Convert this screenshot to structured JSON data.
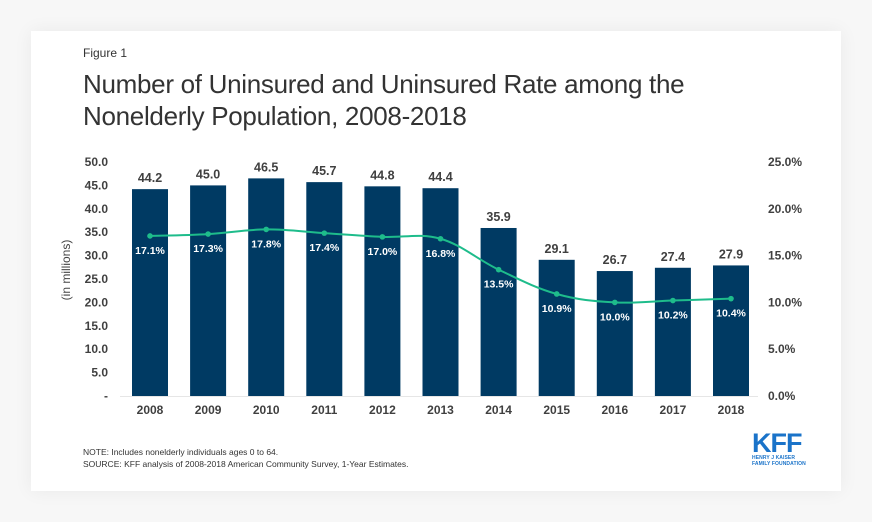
{
  "figure_label": "Figure 1",
  "title_lines": [
    "Number of Uninsured and Uninsured Rate among the",
    "Nonelderly Population, 2008-2018"
  ],
  "note": "NOTE: Includes nonelderly individuals ages 0 to 64.",
  "source": "SOURCE: KFF analysis of 2008-2018 American Community Survey, 1-Year Estimates.",
  "logo": {
    "name": "KFF",
    "sub_line1": "HENRY J KAISER",
    "sub_line2": "FAMILY FOUNDATION"
  },
  "colors": {
    "bar": "#003a63",
    "line": "#1ebc8b",
    "text": "#333333",
    "logo": "#1a73c9"
  },
  "chart_data": {
    "type": "bar",
    "title": "Number of Uninsured and Uninsured Rate among the Nonelderly Population, 2008-2018",
    "categories": [
      "2008",
      "2009",
      "2010",
      "2011",
      "2012",
      "2013",
      "2014",
      "2015",
      "2016",
      "2017",
      "2018"
    ],
    "series": [
      {
        "name": "Number of Uninsured (in millions)",
        "type": "bar",
        "axis": "left",
        "values": [
          44.2,
          45.0,
          46.5,
          45.7,
          44.8,
          44.4,
          35.9,
          29.1,
          26.7,
          27.4,
          27.9
        ],
        "labels": [
          "44.2",
          "45.0",
          "46.5",
          "45.7",
          "44.8",
          "44.4",
          "35.9",
          "29.1",
          "26.7",
          "27.4",
          "27.9"
        ]
      },
      {
        "name": "Uninsured Rate",
        "type": "line",
        "axis": "right",
        "values": [
          17.1,
          17.3,
          17.8,
          17.4,
          17.0,
          16.8,
          13.5,
          10.9,
          10.0,
          10.2,
          10.4
        ],
        "labels": [
          "17.1%",
          "17.3%",
          "17.8%",
          "17.4%",
          "17.0%",
          "16.8%",
          "13.5%",
          "10.9%",
          "10.0%",
          "10.2%",
          "10.4%"
        ]
      }
    ],
    "xlabel": "",
    "ylabel": "(in millions)",
    "ylim": [
      0,
      50
    ],
    "y_ticks": [
      "-",
      "5.0",
      "10.0",
      "15.0",
      "20.0",
      "25.0",
      "30.0",
      "35.0",
      "40.0",
      "45.0",
      "50.0"
    ],
    "y2lim": [
      0,
      25
    ],
    "y2_ticks": [
      "0.0%",
      "5.0%",
      "10.0%",
      "15.0%",
      "20.0%",
      "25.0%"
    ],
    "grid": false,
    "legend": "none"
  }
}
